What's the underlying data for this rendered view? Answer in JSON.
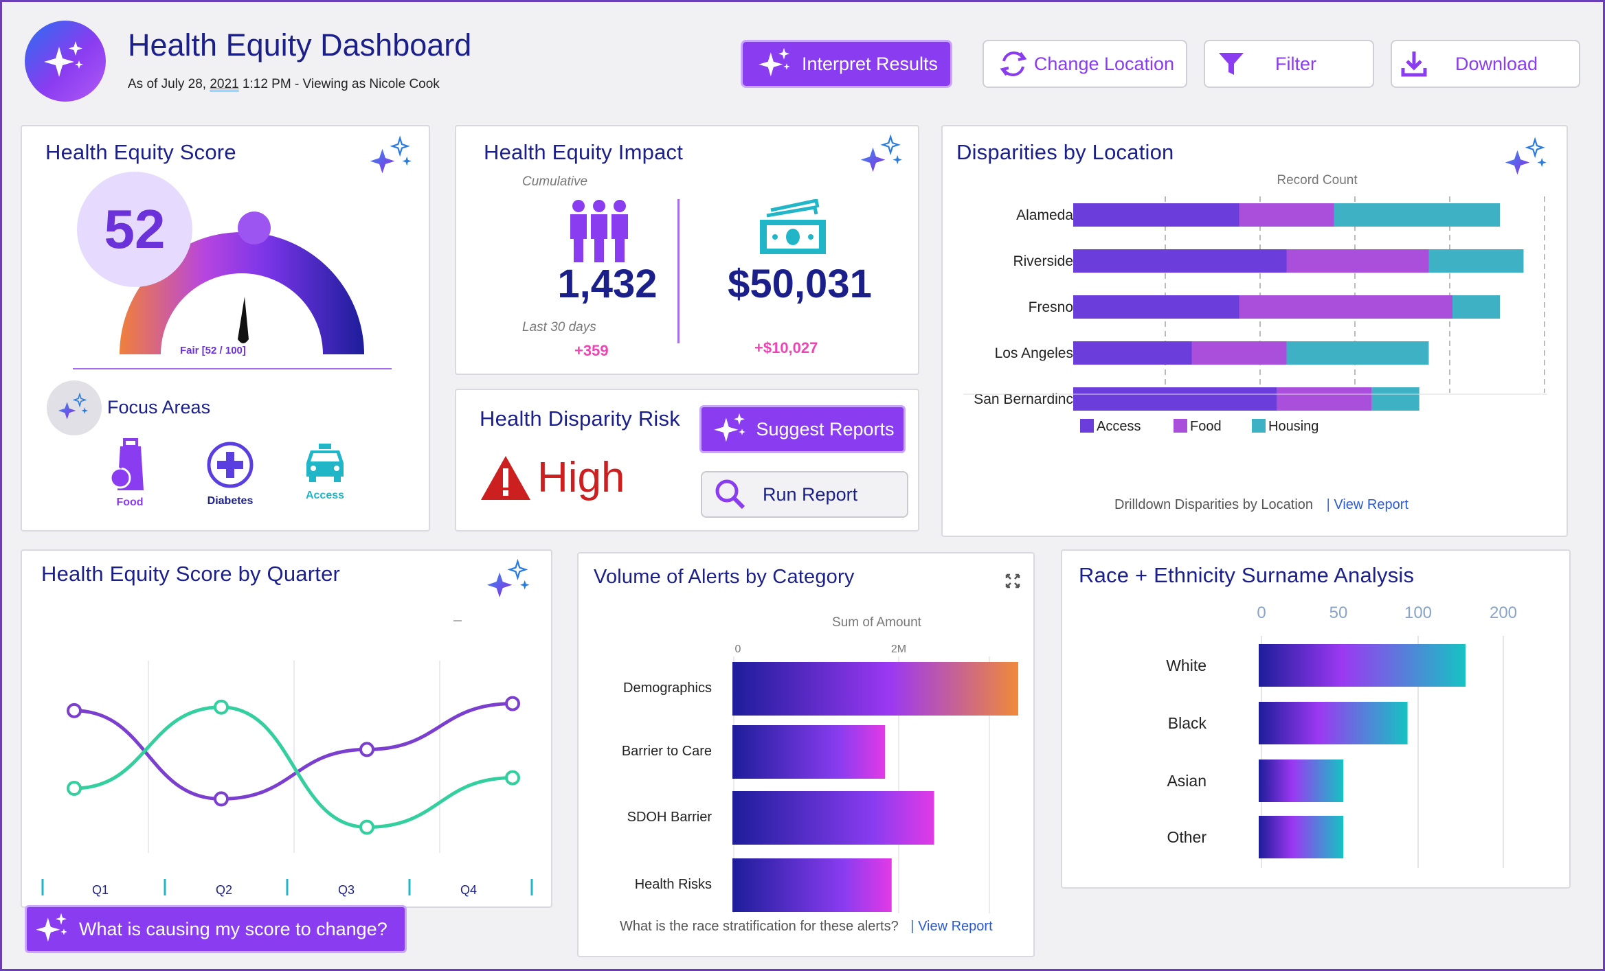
{
  "header": {
    "title": "Health Equity Dashboard",
    "subtitle_prefix": "As of July 28, ",
    "subtitle_year": "2021",
    "subtitle_suffix": " 1:12 PM - Viewing as Nicole Cook",
    "buttons": {
      "interpret": "Interpret Results",
      "change_location": "Change Location",
      "filter": "Filter",
      "download": "Download"
    }
  },
  "score_card": {
    "title": "Health Equity Score",
    "score": "52",
    "gauge_label": "Fair [52 / 100]",
    "gauge_value": 0.52,
    "focus_title": "Focus Areas",
    "focus_items": [
      {
        "label": "Food",
        "icon": "food-bag-icon"
      },
      {
        "label": "Diabetes",
        "icon": "medical-cross-icon"
      },
      {
        "label": "Access",
        "icon": "taxi-icon"
      }
    ]
  },
  "impact_card": {
    "title": "Health Equity Impact",
    "cumulative": "Cumulative",
    "people_value": "1,432",
    "period": "Last 30 days",
    "people_delta": "+359",
    "money_value": "$50,031",
    "money_delta": "+$10,027"
  },
  "risk_card": {
    "title": "Health Disparity Risk",
    "level": "High",
    "suggest_button": "Suggest Reports",
    "run_button": "Run Report"
  },
  "disparities": {
    "title": "Disparities by Location",
    "footer_text": "Drilldown Disparities by Location",
    "view_report": "View Report",
    "chart_data": {
      "type": "bar",
      "orientation": "horizontal",
      "stacked": true,
      "xlabel": "Record Count",
      "categories": [
        "Alameda",
        "Riverside",
        "Fresno",
        "Los Angeles",
        "San Bernardinc"
      ],
      "series": [
        {
          "name": "Access",
          "color": "#6b3ddb",
          "values": [
            35,
            45,
            35,
            25,
            43
          ]
        },
        {
          "name": "Food",
          "color": "#a94fdc",
          "values": [
            20,
            30,
            45,
            20,
            20
          ]
        },
        {
          "name": "Housing",
          "color": "#3eb2c4",
          "values": [
            35,
            20,
            10,
            30,
            10
          ]
        }
      ],
      "xlim": [
        0,
        100
      ],
      "grid": true,
      "legend": "bottom"
    }
  },
  "quarter_chart": {
    "title": "Health Equity Score by Quarter",
    "chart_data": {
      "type": "line",
      "categories": [
        "Q1",
        "Q2",
        "Q3",
        "Q4"
      ],
      "series": [
        {
          "color": "#7b3fcf",
          "values": [
            70,
            45,
            59,
            72
          ]
        },
        {
          "color": "#34cf9e",
          "values": [
            48,
            71,
            37,
            51
          ]
        }
      ],
      "ylim": [
        20,
        90
      ],
      "grid": true
    }
  },
  "alerts_chart": {
    "title": "Volume of Alerts by Category",
    "footer_text": "What is the race stratification for these alerts?",
    "view_report": "View Report",
    "chart_data": {
      "type": "bar",
      "orientation": "horizontal",
      "xlabel": "Sum of Amount",
      "ticks": [
        "0",
        "2M"
      ],
      "categories": [
        "Demographics",
        "Barrier to Care",
        "SDOH Barrier",
        "Health Risks"
      ],
      "values": [
        3.5,
        1.87,
        2.47,
        1.95
      ],
      "xlim": [
        0,
        3.5
      ],
      "grid": true
    }
  },
  "race_chart": {
    "title": "Race + Ethnicity Surname Analysis",
    "chart_data": {
      "type": "bar",
      "orientation": "horizontal",
      "ticks": [
        "0",
        "50",
        "100",
        "200"
      ],
      "categories": [
        "White",
        "Black",
        "Asian",
        "Other"
      ],
      "values": [
        132,
        95,
        54,
        54
      ],
      "grid": true
    }
  },
  "ask_button": "What is causing my score to change?",
  "colors": {
    "navy": "#1b1f8a",
    "purple": "#8a3cf0",
    "teal": "#20b6c7",
    "pink": "#ef44b4",
    "danger": "#cc1f1f"
  }
}
